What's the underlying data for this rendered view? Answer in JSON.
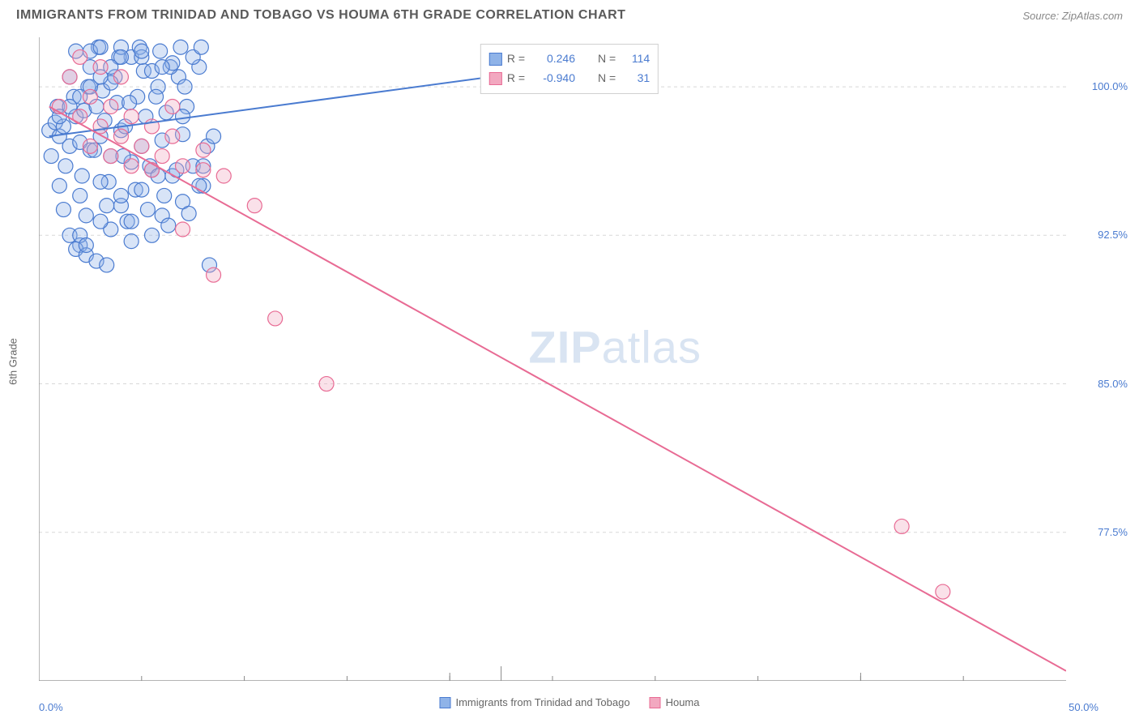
{
  "header": {
    "title": "IMMIGRANTS FROM TRINIDAD AND TOBAGO VS HOUMA 6TH GRADE CORRELATION CHART",
    "source": "Source: ZipAtlas.com"
  },
  "chart": {
    "type": "scatter",
    "ylabel": "6th Grade",
    "xlim": [
      0,
      50
    ],
    "ylim": [
      70,
      102.5
    ],
    "x_ticks": [
      0,
      50
    ],
    "x_tick_labels": [
      "0.0%",
      "50.0%"
    ],
    "x_minor_ticks": [
      5,
      10,
      15,
      20,
      25,
      30,
      35,
      40,
      45
    ],
    "y_ticks": [
      77.5,
      85.0,
      92.5,
      100.0
    ],
    "y_tick_labels": [
      "77.5%",
      "85.0%",
      "92.5%",
      "100.0%"
    ],
    "grid_color": "#d8d8d8",
    "axis_color": "#888888",
    "background_color": "#ffffff",
    "marker_radius": 9,
    "marker_stroke_width": 1.2,
    "line_width": 2,
    "series": [
      {
        "name": "Immigrants from Trinidad and Tobago",
        "fill_color": "#8fb3e8",
        "stroke_color": "#4a7bd0",
        "fill_opacity": 0.35,
        "R": "0.246",
        "N": "114",
        "trend_line": {
          "x1": 0.5,
          "y1": 97.5,
          "x2": 27,
          "y2": 101.2
        },
        "points": [
          [
            0.5,
            97.8
          ],
          [
            0.8,
            98.2
          ],
          [
            1.0,
            97.5
          ],
          [
            1.2,
            98.0
          ],
          [
            1.5,
            97.0
          ],
          [
            1.8,
            98.5
          ],
          [
            2.0,
            97.2
          ],
          [
            2.2,
            98.8
          ],
          [
            2.5,
            96.8
          ],
          [
            2.8,
            99.0
          ],
          [
            3.0,
            97.5
          ],
          [
            3.2,
            98.3
          ],
          [
            3.5,
            96.5
          ],
          [
            3.8,
            99.2
          ],
          [
            4.0,
            97.8
          ],
          [
            4.2,
            98.0
          ],
          [
            4.5,
            96.2
          ],
          [
            4.8,
            99.5
          ],
          [
            5.0,
            97.0
          ],
          [
            5.2,
            98.5
          ],
          [
            5.5,
            95.8
          ],
          [
            5.8,
            100.0
          ],
          [
            6.0,
            97.3
          ],
          [
            6.2,
            98.7
          ],
          [
            6.5,
            95.5
          ],
          [
            6.8,
            100.5
          ],
          [
            7.0,
            97.6
          ],
          [
            7.2,
            99.0
          ],
          [
            7.5,
            96.0
          ],
          [
            7.8,
            101.0
          ],
          [
            0.6,
            96.5
          ],
          [
            0.9,
            99.0
          ],
          [
            1.3,
            96.0
          ],
          [
            1.7,
            99.5
          ],
          [
            2.1,
            95.5
          ],
          [
            2.4,
            100.0
          ],
          [
            2.7,
            96.8
          ],
          [
            3.1,
            99.8
          ],
          [
            3.4,
            95.2
          ],
          [
            3.7,
            100.5
          ],
          [
            4.1,
            96.5
          ],
          [
            4.4,
            99.2
          ],
          [
            4.7,
            94.8
          ],
          [
            5.1,
            100.8
          ],
          [
            5.4,
            96.0
          ],
          [
            5.7,
            99.5
          ],
          [
            6.1,
            94.5
          ],
          [
            6.4,
            101.0
          ],
          [
            6.7,
            95.8
          ],
          [
            7.1,
            100.0
          ],
          [
            1.0,
            95.0
          ],
          [
            1.5,
            100.5
          ],
          [
            2.0,
            94.5
          ],
          [
            2.5,
            101.0
          ],
          [
            3.0,
            95.2
          ],
          [
            3.5,
            100.2
          ],
          [
            4.0,
            94.0
          ],
          [
            4.5,
            101.5
          ],
          [
            5.0,
            94.8
          ],
          [
            5.5,
            100.8
          ],
          [
            6.0,
            93.5
          ],
          [
            6.5,
            101.2
          ],
          [
            7.0,
            94.2
          ],
          [
            7.5,
            101.5
          ],
          [
            8.0,
            95.0
          ],
          [
            1.2,
            93.8
          ],
          [
            1.8,
            101.8
          ],
          [
            2.3,
            93.5
          ],
          [
            2.9,
            102.0
          ],
          [
            3.3,
            94.0
          ],
          [
            3.9,
            101.5
          ],
          [
            4.3,
            93.2
          ],
          [
            4.9,
            102.0
          ],
          [
            5.3,
            93.8
          ],
          [
            5.9,
            101.8
          ],
          [
            6.3,
            93.0
          ],
          [
            6.9,
            102.0
          ],
          [
            7.3,
            93.6
          ],
          [
            7.9,
            102.0
          ],
          [
            8.2,
            97.0
          ],
          [
            1.5,
            92.5
          ],
          [
            2.0,
            92.0
          ],
          [
            2.5,
            101.8
          ],
          [
            3.0,
            102.0
          ],
          [
            3.5,
            92.8
          ],
          [
            4.0,
            102.0
          ],
          [
            4.5,
            92.2
          ],
          [
            5.0,
            101.5
          ],
          [
            5.5,
            92.5
          ],
          [
            6.0,
            101.0
          ],
          [
            1.8,
            91.8
          ],
          [
            2.3,
            91.5
          ],
          [
            2.8,
            91.2
          ],
          [
            3.3,
            91.0
          ],
          [
            4.0,
            94.5
          ],
          [
            4.5,
            93.2
          ],
          [
            5.8,
            95.5
          ],
          [
            1.0,
            98.5
          ],
          [
            1.5,
            99.0
          ],
          [
            2.0,
            99.5
          ],
          [
            2.5,
            100.0
          ],
          [
            3.0,
            100.5
          ],
          [
            3.5,
            101.0
          ],
          [
            4.0,
            101.5
          ],
          [
            8.5,
            97.5
          ],
          [
            2.0,
            92.5
          ],
          [
            2.3,
            92.0
          ],
          [
            8.0,
            96.0
          ],
          [
            7.8,
            95.0
          ],
          [
            8.3,
            91.0
          ],
          [
            3.0,
            93.2
          ],
          [
            5.0,
            101.8
          ],
          [
            7.0,
            98.5
          ],
          [
            27.0,
            101.2
          ]
        ]
      },
      {
        "name": "Houma",
        "fill_color": "#f2a8c0",
        "stroke_color": "#e86b94",
        "fill_opacity": 0.35,
        "R": "-0.940",
        "N": "31",
        "trend_line": {
          "x1": 0.5,
          "y1": 99.0,
          "x2": 50,
          "y2": 70.5
        },
        "points": [
          [
            1.0,
            99.0
          ],
          [
            1.5,
            100.5
          ],
          [
            2.0,
            98.5
          ],
          [
            2.5,
            99.5
          ],
          [
            3.0,
            98.0
          ],
          [
            3.5,
            99.0
          ],
          [
            4.0,
            97.5
          ],
          [
            4.5,
            98.5
          ],
          [
            5.0,
            97.0
          ],
          [
            5.5,
            98.0
          ],
          [
            6.0,
            96.5
          ],
          [
            6.5,
            97.5
          ],
          [
            7.0,
            96.0
          ],
          [
            8.0,
            95.8
          ],
          [
            9.0,
            95.5
          ],
          [
            2.0,
            101.5
          ],
          [
            3.0,
            101.0
          ],
          [
            4.0,
            100.5
          ],
          [
            2.5,
            97.0
          ],
          [
            3.5,
            96.5
          ],
          [
            4.5,
            96.0
          ],
          [
            5.5,
            95.8
          ],
          [
            8.0,
            96.8
          ],
          [
            7.0,
            92.8
          ],
          [
            8.5,
            90.5
          ],
          [
            10.5,
            94.0
          ],
          [
            11.5,
            88.3
          ],
          [
            14.0,
            85.0
          ],
          [
            42.0,
            77.8
          ],
          [
            44.0,
            74.5
          ],
          [
            6.5,
            99.0
          ]
        ]
      }
    ]
  },
  "legend_bottom": [
    {
      "label": "Immigrants from Trinidad and Tobago",
      "fill": "#8fb3e8",
      "stroke": "#4a7bd0"
    },
    {
      "label": "Houma",
      "fill": "#f2a8c0",
      "stroke": "#e86b94"
    }
  ],
  "stats_box": {
    "rows": [
      {
        "fill": "#8fb3e8",
        "stroke": "#4a7bd0",
        "r_label": "R =",
        "r_val": " 0.246",
        "n_label": "N =",
        "n_val": "114"
      },
      {
        "fill": "#f2a8c0",
        "stroke": "#e86b94",
        "r_label": "R =",
        "r_val": "-0.940",
        "n_label": "N =",
        "n_val": " 31"
      }
    ]
  },
  "watermark": {
    "part1": "ZIP",
    "part2": "atlas"
  }
}
